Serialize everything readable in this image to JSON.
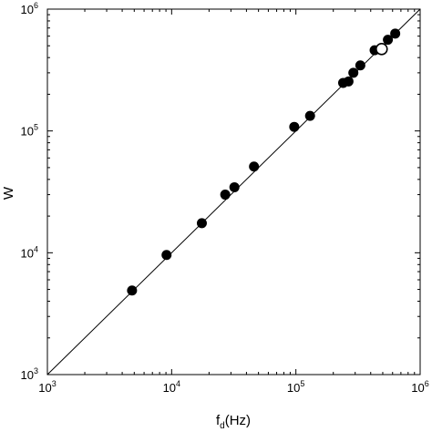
{
  "chart_data": {
    "type": "scatter",
    "xlabel": "f",
    "xlabel_sub": "d",
    "xlabel_unit": "(Hz)",
    "ylabel": "W",
    "xscale": "log",
    "yscale": "log",
    "xlim": [
      1000,
      1000000
    ],
    "ylim": [
      1000,
      1000000
    ],
    "grid": false,
    "x_tick_labels": [
      {
        "value": 1000,
        "base": "10",
        "exp": "3"
      },
      {
        "value": 10000,
        "base": "10",
        "exp": "4"
      },
      {
        "value": 100000,
        "base": "10",
        "exp": "5"
      },
      {
        "value": 1000000,
        "base": "10",
        "exp": "6"
      }
    ],
    "y_tick_labels": [
      {
        "value": 1000,
        "base": "10",
        "exp": "3"
      },
      {
        "value": 10000,
        "base": "10",
        "exp": "4"
      },
      {
        "value": 100000,
        "base": "10",
        "exp": "5"
      },
      {
        "value": 1000000,
        "base": "10",
        "exp": "6"
      }
    ],
    "reference_line": {
      "x": [
        1000,
        1000000
      ],
      "y": [
        1000,
        1000000
      ],
      "color": "#000000"
    },
    "series": [
      {
        "marker": "filled-circle",
        "color": "#000000",
        "points": [
          {
            "x": 4800,
            "y": 4900
          },
          {
            "x": 9100,
            "y": 9600
          },
          {
            "x": 17500,
            "y": 17500
          },
          {
            "x": 27000,
            "y": 30000
          },
          {
            "x": 32000,
            "y": 34500
          },
          {
            "x": 46000,
            "y": 51000
          },
          {
            "x": 97000,
            "y": 108000
          },
          {
            "x": 130000,
            "y": 133000
          },
          {
            "x": 240000,
            "y": 248000
          },
          {
            "x": 265000,
            "y": 255000
          },
          {
            "x": 290000,
            "y": 300000
          },
          {
            "x": 330000,
            "y": 345000
          },
          {
            "x": 430000,
            "y": 460000
          },
          {
            "x": 550000,
            "y": 560000
          },
          {
            "x": 630000,
            "y": 630000
          }
        ]
      },
      {
        "marker": "open-circle",
        "color": "#000000",
        "points": [
          {
            "x": 490000,
            "y": 470000
          }
        ]
      }
    ]
  }
}
